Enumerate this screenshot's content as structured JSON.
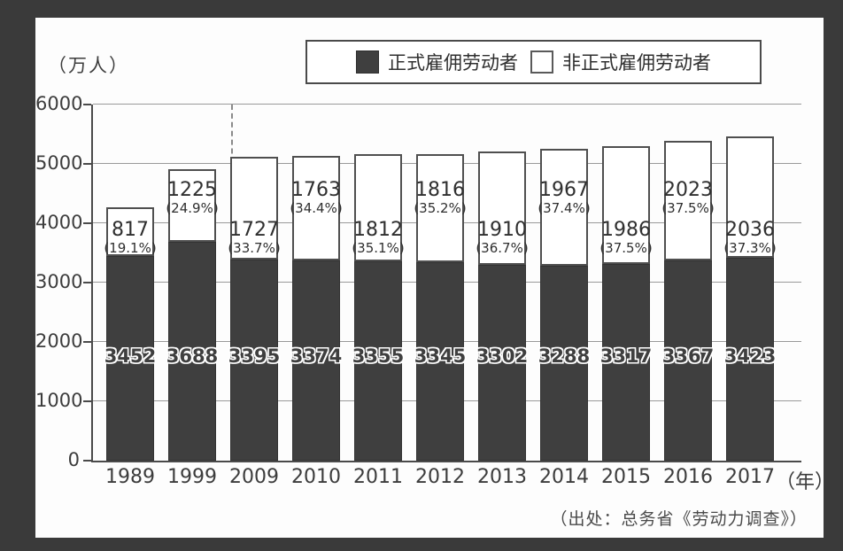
{
  "colors": {
    "frame_bg": "#3a3a3a",
    "panel_bg": "#fdfdfd",
    "regular_bar": "#3f3f3f",
    "nonregular_bar": "#ffffff",
    "gridline": "#9a9a9a"
  },
  "y_axis": {
    "unit_label": "（万人）",
    "ticks": [
      "6000",
      "5000",
      "4000",
      "3000",
      "2000",
      "1000",
      "0"
    ],
    "max": 6000
  },
  "x_axis": {
    "unit_label": "（年）"
  },
  "legend": {
    "items": [
      {
        "label": "正式雇佣劳动者",
        "swatch": "dark"
      },
      {
        "label": "非正式雇佣劳动者",
        "swatch": "white"
      }
    ]
  },
  "source": {
    "text": "（出处：总务省《劳动力调查》）"
  },
  "chart_data": {
    "type": "bar",
    "stacked": true,
    "title": "",
    "xlabel": "（年）",
    "ylabel": "（万人）",
    "ylim": [
      0,
      6000
    ],
    "grid": true,
    "legend_position": "top",
    "categories": [
      "1989",
      "1999",
      "2009",
      "2010",
      "2011",
      "2012",
      "2013",
      "2014",
      "2015",
      "2016",
      "2017"
    ],
    "series": [
      {
        "name": "正式雇佣劳动者",
        "color": "#3f3f3f",
        "values": [
          3452,
          3688,
          3395,
          3374,
          3355,
          3345,
          3302,
          3288,
          3317,
          3367,
          3423
        ]
      },
      {
        "name": "非正式雇佣劳动者",
        "color": "#ffffff",
        "values": [
          817,
          1225,
          1727,
          1763,
          1812,
          1816,
          1910,
          1967,
          1986,
          2023,
          2036
        ]
      }
    ],
    "nonregular_pct_labels": [
      "(19.1%)",
      "(24.9%)",
      "(33.7%)",
      "(34.4%)",
      "(35.1%)",
      "(35.2%)",
      "(36.7%)",
      "(37.4%)",
      "(37.5%)",
      "(37.5%)",
      "(37.3%)"
    ],
    "nonregular_label_high": [
      false,
      true,
      false,
      true,
      false,
      true,
      false,
      true,
      false,
      true,
      false
    ],
    "divider_after_category": "1999"
  }
}
